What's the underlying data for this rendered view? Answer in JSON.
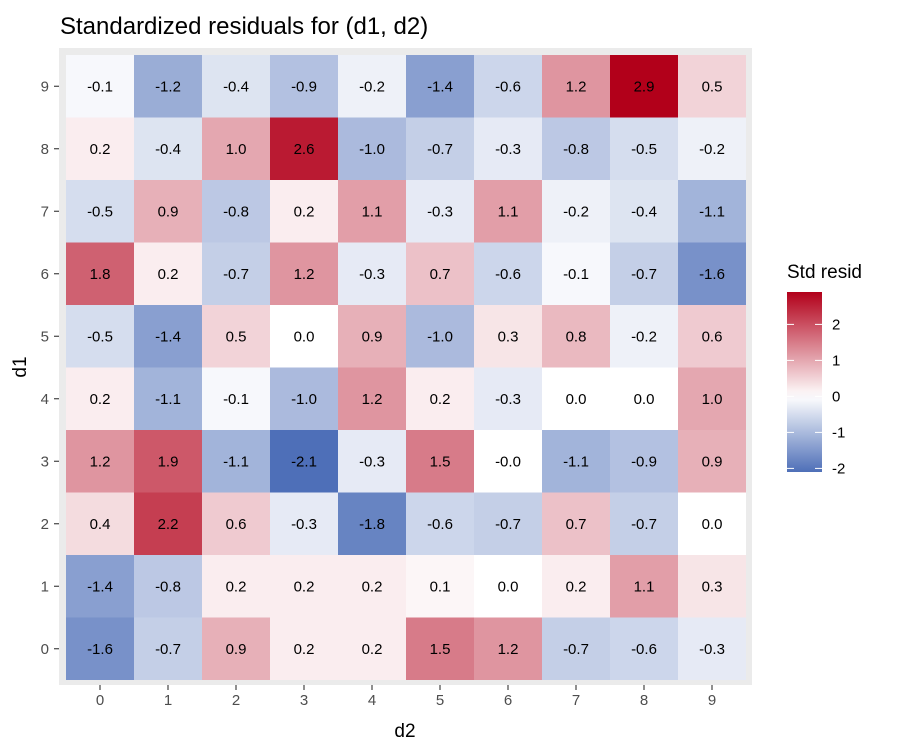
{
  "chart_data": {
    "type": "heatmap",
    "title": "Standardized residuals for (d1, d2)",
    "xlabel": "d2",
    "ylabel": "d1",
    "x_categories": [
      "0",
      "1",
      "2",
      "3",
      "4",
      "5",
      "6",
      "7",
      "8",
      "9"
    ],
    "y_categories": [
      "0",
      "1",
      "2",
      "3",
      "4",
      "5",
      "6",
      "7",
      "8",
      "9"
    ],
    "values": [
      [
        -1.6,
        -0.7,
        0.9,
        0.2,
        0.2,
        1.5,
        1.2,
        -0.7,
        -0.6,
        -0.3
      ],
      [
        -1.4,
        -0.8,
        0.2,
        0.2,
        0.2,
        0.1,
        0.0,
        0.2,
        1.1,
        0.3
      ],
      [
        0.4,
        2.2,
        0.6,
        -0.3,
        -1.8,
        -0.6,
        -0.7,
        0.7,
        -0.7,
        0.0
      ],
      [
        1.2,
        1.9,
        -1.1,
        -2.1,
        -0.3,
        1.5,
        -0.0,
        -1.1,
        -0.9,
        0.9
      ],
      [
        0.2,
        -1.1,
        -0.1,
        -1.0,
        1.2,
        0.2,
        -0.3,
        0.0,
        0.0,
        1.0
      ],
      [
        -0.5,
        -1.4,
        0.5,
        0.0,
        0.9,
        -1.0,
        0.3,
        0.8,
        -0.2,
        0.6
      ],
      [
        1.8,
        0.2,
        -0.7,
        1.2,
        -0.3,
        0.7,
        -0.6,
        -0.1,
        -0.7,
        -1.6
      ],
      [
        -0.5,
        0.9,
        -0.8,
        0.2,
        1.1,
        -0.3,
        1.1,
        -0.2,
        -0.4,
        -1.1
      ],
      [
        0.2,
        -0.4,
        1.0,
        2.6,
        -1.0,
        -0.7,
        -0.3,
        -0.8,
        -0.5,
        -0.2
      ],
      [
        -0.1,
        -1.2,
        -0.4,
        -0.9,
        -0.2,
        -1.4,
        -0.6,
        1.2,
        2.9,
        0.5
      ]
    ],
    "labels": [
      [
        "-1.6",
        "-0.7",
        "0.9",
        "0.2",
        "0.2",
        "1.5",
        "1.2",
        "-0.7",
        "-0.6",
        "-0.3"
      ],
      [
        "-1.4",
        "-0.8",
        "0.2",
        "0.2",
        "0.2",
        "0.1",
        "0.0",
        "0.2",
        "1.1",
        "0.3"
      ],
      [
        "0.4",
        "2.2",
        "0.6",
        "-0.3",
        "-1.8",
        "-0.6",
        "-0.7",
        "0.7",
        "-0.7",
        "0.0"
      ],
      [
        "1.2",
        "1.9",
        "-1.1",
        "-2.1",
        "-0.3",
        "1.5",
        "-0.0",
        "-1.1",
        "-0.9",
        "0.9"
      ],
      [
        "0.2",
        "-1.1",
        "-0.1",
        "-1.0",
        "1.2",
        "0.2",
        "-0.3",
        "0.0",
        "0.0",
        "1.0"
      ],
      [
        "-0.5",
        "-1.4",
        "0.5",
        "0.0",
        "0.9",
        "-1.0",
        "0.3",
        "0.8",
        "-0.2",
        "0.6"
      ],
      [
        "1.8",
        "0.2",
        "-0.7",
        "1.2",
        "-0.3",
        "0.7",
        "-0.6",
        "-0.1",
        "-0.7",
        "-1.6"
      ],
      [
        "-0.5",
        "0.9",
        "-0.8",
        "0.2",
        "1.1",
        "-0.3",
        "1.1",
        "-0.2",
        "-0.4",
        "-1.1"
      ],
      [
        "0.2",
        "-0.4",
        "1.0",
        "2.6",
        "-1.0",
        "-0.7",
        "-0.3",
        "-0.8",
        "-0.5",
        "-0.2"
      ],
      [
        "-0.1",
        "-1.2",
        "-0.4",
        "-0.9",
        "-0.2",
        "-1.4",
        "-0.6",
        "1.2",
        "2.9",
        "0.5"
      ]
    ],
    "legend": {
      "title": "Std resid",
      "ticks": [
        2,
        1,
        0,
        -1,
        -2
      ],
      "tick_labels": [
        "2",
        "1",
        "0",
        "-1",
        "-2"
      ],
      "range": [
        -2.1,
        2.9
      ],
      "placement": "right"
    },
    "color_scale": {
      "low": "#4e6fb8",
      "mid": "#ffffff",
      "high": "#b2001a"
    },
    "panel_background": "#ebebeb",
    "grid": false
  }
}
